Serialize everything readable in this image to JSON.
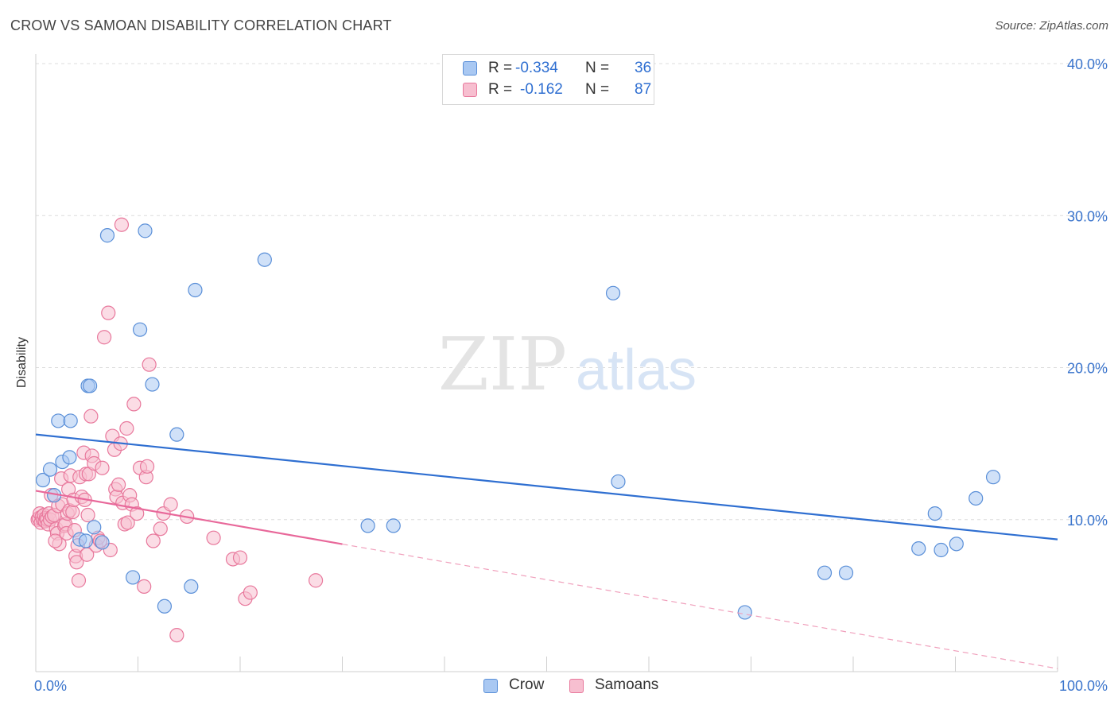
{
  "header": {
    "title": "CROW VS SAMOAN DISABILITY CORRELATION CHART",
    "source": "Source: ZipAtlas.com"
  },
  "watermark": {
    "zip": "ZIP",
    "atlas": "atlas"
  },
  "legend": {
    "rows": [
      {
        "r_label": "R = ",
        "r_value": "-0.334",
        "n_label": "N = ",
        "n_value": "36",
        "color": "#a9c8f2",
        "border": "#5a8fd8"
      },
      {
        "r_label": "R = ",
        "r_value": "-0.162",
        "n_label": "N = ",
        "n_value": "87",
        "color": "#f7bfd0",
        "border": "#e8789c"
      }
    ]
  },
  "bottom_legend": [
    {
      "label": "Crow",
      "color": "#a9c8f2",
      "border": "#5a8fd8"
    },
    {
      "label": "Samoans",
      "color": "#f7bfd0",
      "border": "#e8789c"
    }
  ],
  "chart_data": {
    "type": "scatter",
    "title": "CROW VS SAMOAN DISABILITY CORRELATION CHART",
    "xlabel": "",
    "ylabel": "Disability",
    "xlim": [
      0,
      100
    ],
    "ylim": [
      0,
      40
    ],
    "x_tick_labels": [
      "0.0%",
      "100.0%"
    ],
    "y_ticks": [
      10,
      20,
      30,
      40
    ],
    "y_tick_labels": [
      "10.0%",
      "20.0%",
      "30.0%",
      "40.0%"
    ],
    "grid": true,
    "series": [
      {
        "name": "Crow",
        "color": "#5a8fd8",
        "fill": "#a9c8f2",
        "trend": {
          "x0": 0,
          "y0": 15.6,
          "x1": 100,
          "y1": 8.7,
          "dashed_from": null
        },
        "points": [
          [
            0.7,
            12.6
          ],
          [
            1.4,
            13.3
          ],
          [
            1.8,
            11.6
          ],
          [
            2.2,
            16.5
          ],
          [
            2.6,
            13.8
          ],
          [
            3.3,
            14.1
          ],
          [
            3.4,
            16.5
          ],
          [
            4.3,
            8.7
          ],
          [
            5.1,
            18.8
          ],
          [
            5.3,
            18.8
          ],
          [
            5.7,
            9.5
          ],
          [
            6.5,
            8.5
          ],
          [
            7.0,
            28.7
          ],
          [
            9.5,
            6.2
          ],
          [
            10.2,
            22.5
          ],
          [
            10.7,
            29.0
          ],
          [
            11.4,
            18.9
          ],
          [
            12.6,
            4.3
          ],
          [
            13.8,
            15.6
          ],
          [
            15.2,
            5.6
          ],
          [
            15.6,
            25.1
          ],
          [
            22.4,
            27.1
          ],
          [
            32.5,
            9.6
          ],
          [
            35.0,
            9.6
          ],
          [
            57.0,
            12.5
          ],
          [
            56.5,
            24.9
          ],
          [
            69.4,
            3.9
          ],
          [
            77.2,
            6.5
          ],
          [
            79.3,
            6.5
          ],
          [
            86.4,
            8.1
          ],
          [
            88.0,
            10.4
          ],
          [
            88.6,
            8.0
          ],
          [
            90.1,
            8.4
          ],
          [
            92.0,
            11.4
          ],
          [
            93.7,
            12.8
          ],
          [
            4.9,
            8.6
          ]
        ]
      },
      {
        "name": "Samoans",
        "color": "#e8789c",
        "fill": "#f7bfd0",
        "trend": {
          "x0": 0,
          "y0": 11.9,
          "x1": 100,
          "y1": 0.2,
          "solid_until": 30
        },
        "points": [
          [
            0.2,
            10.0
          ],
          [
            0.3,
            10.1
          ],
          [
            0.4,
            10.4
          ],
          [
            0.5,
            9.8
          ],
          [
            0.6,
            10.2
          ],
          [
            0.7,
            10.0
          ],
          [
            0.8,
            10.3
          ],
          [
            0.9,
            9.9
          ],
          [
            1.0,
            10.1
          ],
          [
            1.1,
            10.0
          ],
          [
            1.2,
            9.7
          ],
          [
            1.3,
            10.4
          ],
          [
            1.4,
            10.0
          ],
          [
            1.5,
            11.6
          ],
          [
            1.6,
            10.2
          ],
          [
            1.8,
            10.3
          ],
          [
            2.0,
            9.4
          ],
          [
            2.1,
            9.1
          ],
          [
            2.2,
            10.9
          ],
          [
            2.3,
            8.4
          ],
          [
            2.5,
            12.7
          ],
          [
            2.6,
            11.0
          ],
          [
            2.8,
            9.6
          ],
          [
            2.9,
            9.7
          ],
          [
            3.0,
            9.1
          ],
          [
            3.1,
            10.4
          ],
          [
            3.2,
            12.0
          ],
          [
            3.3,
            10.6
          ],
          [
            3.4,
            12.9
          ],
          [
            3.6,
            10.5
          ],
          [
            3.7,
            11.3
          ],
          [
            3.8,
            9.3
          ],
          [
            3.9,
            7.6
          ],
          [
            4.0,
            7.2
          ],
          [
            4.1,
            8.3
          ],
          [
            4.2,
            6.0
          ],
          [
            4.3,
            12.8
          ],
          [
            4.5,
            11.5
          ],
          [
            4.7,
            14.4
          ],
          [
            4.8,
            11.3
          ],
          [
            4.9,
            13.0
          ],
          [
            5.0,
            7.7
          ],
          [
            5.1,
            10.3
          ],
          [
            5.2,
            13.0
          ],
          [
            5.4,
            16.8
          ],
          [
            5.5,
            14.2
          ],
          [
            5.7,
            13.7
          ],
          [
            5.9,
            8.3
          ],
          [
            6.1,
            8.8
          ],
          [
            6.3,
            8.6
          ],
          [
            6.5,
            13.4
          ],
          [
            6.7,
            22.0
          ],
          [
            7.1,
            23.6
          ],
          [
            7.3,
            8.0
          ],
          [
            7.5,
            15.5
          ],
          [
            7.7,
            14.6
          ],
          [
            7.8,
            12.0
          ],
          [
            7.9,
            11.5
          ],
          [
            8.1,
            12.3
          ],
          [
            8.3,
            15.0
          ],
          [
            8.4,
            29.4
          ],
          [
            8.5,
            11.1
          ],
          [
            8.7,
            9.7
          ],
          [
            8.9,
            16.0
          ],
          [
            9.0,
            9.8
          ],
          [
            9.2,
            11.6
          ],
          [
            9.4,
            11.0
          ],
          [
            9.6,
            17.6
          ],
          [
            9.9,
            10.4
          ],
          [
            10.2,
            13.4
          ],
          [
            10.6,
            5.6
          ],
          [
            10.8,
            12.8
          ],
          [
            10.9,
            13.5
          ],
          [
            11.1,
            20.2
          ],
          [
            11.5,
            8.6
          ],
          [
            12.2,
            9.4
          ],
          [
            12.5,
            10.4
          ],
          [
            13.2,
            11.0
          ],
          [
            13.8,
            2.4
          ],
          [
            14.8,
            10.2
          ],
          [
            17.4,
            8.8
          ],
          [
            19.3,
            7.4
          ],
          [
            20.0,
            7.5
          ],
          [
            20.5,
            4.8
          ],
          [
            21.0,
            5.2
          ],
          [
            27.4,
            6.0
          ],
          [
            1.9,
            8.6
          ]
        ]
      }
    ]
  }
}
